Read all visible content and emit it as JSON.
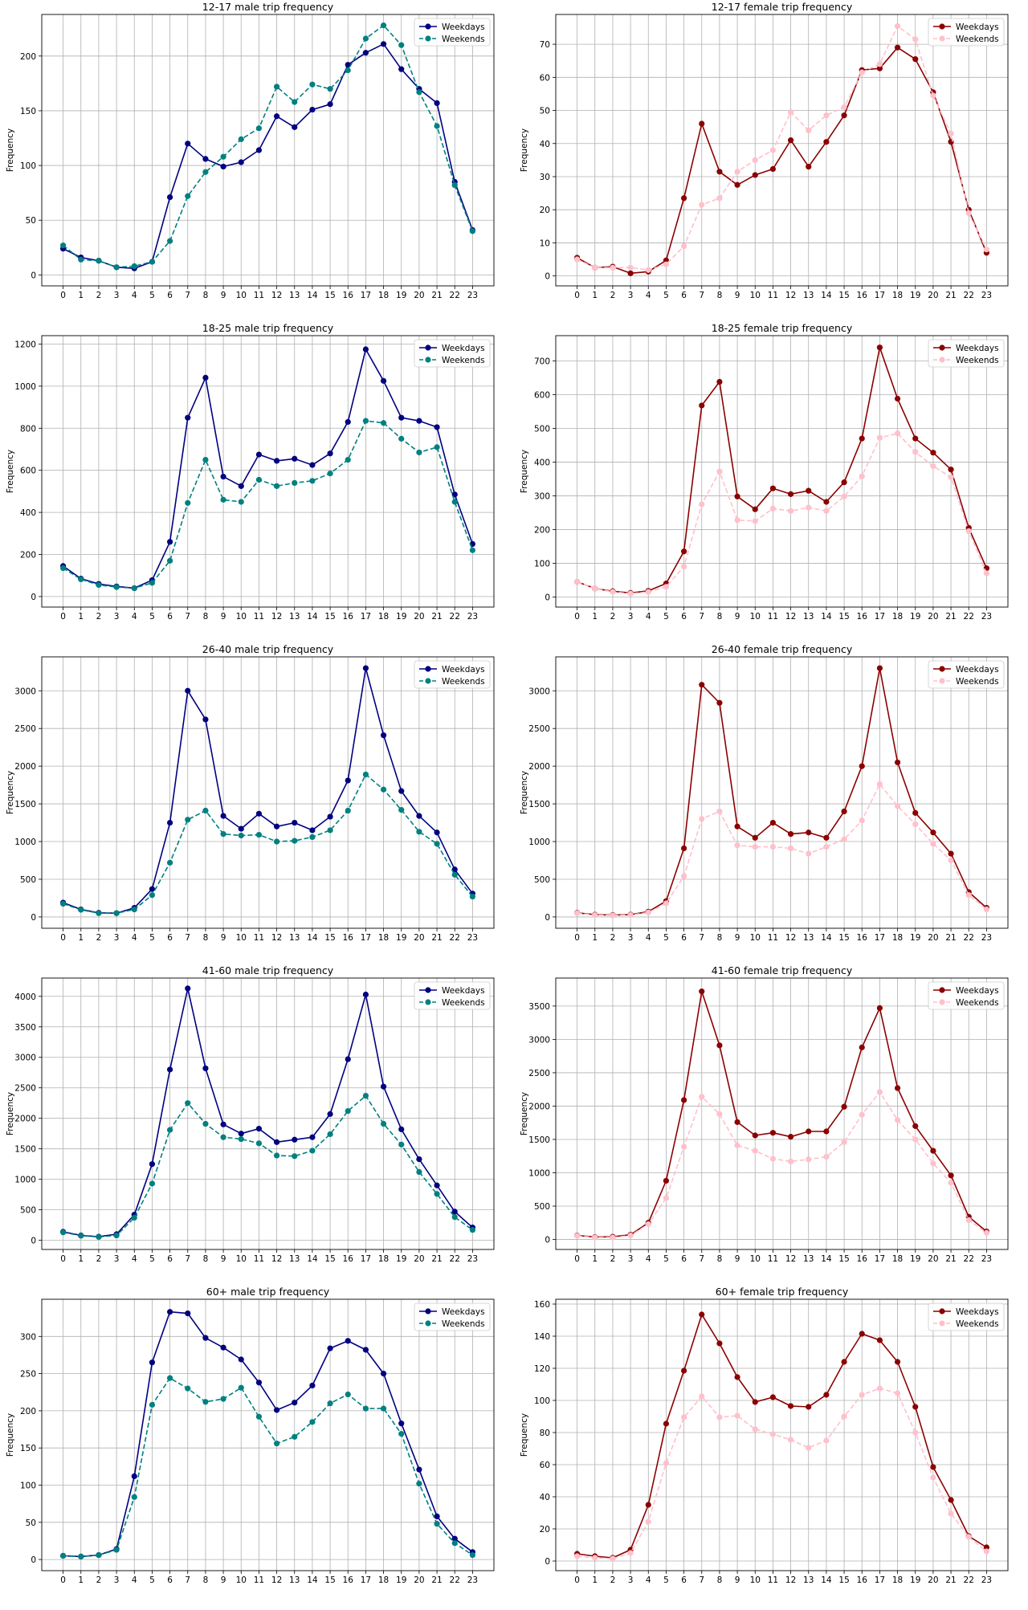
{
  "colors": {
    "male_weekdays": "#000080",
    "male_weekends": "#008080",
    "female_weekdays": "#8b0000",
    "female_weekends": "#ffc0cb",
    "grid": "#b0b0b0"
  },
  "chart_data": [
    {
      "type": "line",
      "title": "12-17 male trip frequency",
      "ylabel": "Frequency",
      "ylim": [
        -10,
        238
      ],
      "yticks": [
        0,
        50,
        100,
        150,
        200
      ],
      "categories": [
        "0",
        "1",
        "2",
        "3",
        "4",
        "5",
        "6",
        "7",
        "8",
        "9",
        "10",
        "11",
        "12",
        "13",
        "14",
        "15",
        "16",
        "17",
        "18",
        "19",
        "20",
        "21",
        "22",
        "23"
      ],
      "grid": true,
      "legend": "top-right",
      "series": [
        {
          "name": "Weekdays",
          "style": "solid",
          "color": "#000080",
          "values": [
            24,
            16,
            13,
            7,
            6,
            12,
            71,
            120,
            106,
            99,
            103,
            114,
            145,
            135,
            151,
            156,
            192,
            203,
            211,
            188,
            170,
            157,
            85,
            41
          ]
        },
        {
          "name": "Weekends",
          "style": "dashed",
          "color": "#008080",
          "values": [
            27,
            14,
            13,
            7,
            8,
            12,
            31,
            72,
            94,
            108,
            124,
            134,
            172,
            158,
            174,
            170,
            187,
            216,
            228,
            210,
            167,
            136,
            82,
            40
          ]
        }
      ]
    },
    {
      "type": "line",
      "title": "12-17 female trip frequency",
      "ylabel": "Frequency",
      "ylim": [
        -3,
        79
      ],
      "yticks": [
        0,
        10,
        20,
        30,
        40,
        50,
        60,
        70
      ],
      "categories": [
        "0",
        "1",
        "2",
        "3",
        "4",
        "5",
        "6",
        "7",
        "8",
        "9",
        "10",
        "11",
        "12",
        "13",
        "14",
        "15",
        "16",
        "17",
        "18",
        "19",
        "20",
        "21",
        "22",
        "23"
      ],
      "grid": true,
      "legend": "top-right",
      "series": [
        {
          "name": "Weekdays",
          "style": "solid",
          "color": "#8b0000",
          "values": [
            5.5,
            2.5,
            2.8,
            0.8,
            1.3,
            4.7,
            23.5,
            46,
            31.5,
            27.5,
            30.5,
            32.3,
            41,
            33,
            40.5,
            48.5,
            62.2,
            62.7,
            69,
            65.5,
            55.5,
            40.5,
            20,
            7
          ]
        },
        {
          "name": "Weekends",
          "style": "dashed",
          "color": "#ffc0cb",
          "values": [
            5,
            2.5,
            2.5,
            2.5,
            1.8,
            3.5,
            9,
            21.5,
            23.5,
            31.5,
            35,
            38,
            49.5,
            44,
            48.5,
            51,
            61.5,
            64,
            75.5,
            71.5,
            54.5,
            43,
            19,
            8
          ]
        }
      ]
    },
    {
      "type": "line",
      "title": "18-25 male trip frequency",
      "ylabel": "Frequency",
      "ylim": [
        -50,
        1240
      ],
      "yticks": [
        0,
        200,
        400,
        600,
        800,
        1000,
        1200
      ],
      "categories": [
        "0",
        "1",
        "2",
        "3",
        "4",
        "5",
        "6",
        "7",
        "8",
        "9",
        "10",
        "11",
        "12",
        "13",
        "14",
        "15",
        "16",
        "17",
        "18",
        "19",
        "20",
        "21",
        "22",
        "23"
      ],
      "grid": true,
      "legend": "top-right",
      "series": [
        {
          "name": "Weekdays",
          "style": "solid",
          "color": "#000080",
          "values": [
            145,
            85,
            60,
            48,
            40,
            78,
            260,
            850,
            1040,
            570,
            525,
            675,
            645,
            655,
            625,
            680,
            830,
            1175,
            1025,
            850,
            835,
            805,
            485,
            250
          ]
        },
        {
          "name": "Weekends",
          "style": "dashed",
          "color": "#008080",
          "values": [
            135,
            82,
            55,
            45,
            40,
            65,
            170,
            445,
            650,
            460,
            450,
            555,
            525,
            540,
            550,
            585,
            650,
            835,
            825,
            750,
            685,
            710,
            450,
            220
          ]
        }
      ]
    },
    {
      "type": "line",
      "title": "18-25 female trip frequency",
      "ylabel": "Frequency",
      "ylim": [
        -30,
        775
      ],
      "yticks": [
        0,
        100,
        200,
        300,
        400,
        500,
        600,
        700
      ],
      "categories": [
        "0",
        "1",
        "2",
        "3",
        "4",
        "5",
        "6",
        "7",
        "8",
        "9",
        "10",
        "11",
        "12",
        "13",
        "14",
        "15",
        "16",
        "17",
        "18",
        "19",
        "20",
        "21",
        "22",
        "23"
      ],
      "grid": true,
      "legend": "top-right",
      "series": [
        {
          "name": "Weekdays",
          "style": "solid",
          "color": "#8b0000",
          "values": [
            45,
            25,
            17,
            12,
            18,
            40,
            135,
            568,
            638,
            298,
            260,
            322,
            305,
            315,
            282,
            340,
            470,
            740,
            588,
            470,
            428,
            378,
            205,
            85
          ]
        },
        {
          "name": "Weekends",
          "style": "dashed",
          "color": "#ffc0cb",
          "values": [
            45,
            25,
            15,
            10,
            15,
            30,
            90,
            275,
            372,
            228,
            225,
            262,
            255,
            265,
            255,
            298,
            358,
            472,
            485,
            430,
            388,
            355,
            195,
            70
          ]
        }
      ]
    },
    {
      "type": "line",
      "title": "26-40 male trip frequency",
      "ylabel": "Frequency",
      "ylim": [
        -150,
        3450
      ],
      "yticks": [
        0,
        500,
        1000,
        1500,
        2000,
        2500,
        3000
      ],
      "categories": [
        "0",
        "1",
        "2",
        "3",
        "4",
        "5",
        "6",
        "7",
        "8",
        "9",
        "10",
        "11",
        "12",
        "13",
        "14",
        "15",
        "16",
        "17",
        "18",
        "19",
        "20",
        "21",
        "22",
        "23"
      ],
      "grid": true,
      "legend": "top-right",
      "series": [
        {
          "name": "Weekdays",
          "style": "solid",
          "color": "#000080",
          "values": [
            190,
            100,
            55,
            50,
            120,
            370,
            1250,
            3000,
            2620,
            1340,
            1170,
            1370,
            1200,
            1250,
            1150,
            1330,
            1810,
            3300,
            2410,
            1670,
            1340,
            1120,
            630,
            310
          ]
        },
        {
          "name": "Weekends",
          "style": "dashed",
          "color": "#008080",
          "values": [
            175,
            95,
            50,
            50,
            100,
            290,
            720,
            1290,
            1410,
            1100,
            1080,
            1090,
            1000,
            1010,
            1060,
            1150,
            1410,
            1890,
            1690,
            1420,
            1130,
            970,
            560,
            270
          ]
        }
      ]
    },
    {
      "type": "line",
      "title": "26-40 female trip frequency",
      "ylabel": "Frequency",
      "ylim": [
        -150,
        3450
      ],
      "yticks": [
        0,
        500,
        1000,
        1500,
        2000,
        2500,
        3000
      ],
      "categories": [
        "0",
        "1",
        "2",
        "3",
        "4",
        "5",
        "6",
        "7",
        "8",
        "9",
        "10",
        "11",
        "12",
        "13",
        "14",
        "15",
        "16",
        "17",
        "18",
        "19",
        "20",
        "21",
        "22",
        "23"
      ],
      "grid": true,
      "legend": "top-right",
      "series": [
        {
          "name": "Weekdays",
          "style": "solid",
          "color": "#8b0000",
          "values": [
            55,
            30,
            25,
            30,
            70,
            210,
            910,
            3080,
            2840,
            1200,
            1050,
            1250,
            1100,
            1120,
            1050,
            1400,
            2000,
            3300,
            2050,
            1380,
            1120,
            840,
            330,
            120
          ]
        },
        {
          "name": "Weekends",
          "style": "dashed",
          "color": "#ffc0cb",
          "values": [
            50,
            25,
            20,
            25,
            60,
            180,
            540,
            1300,
            1400,
            950,
            930,
            930,
            910,
            840,
            930,
            1030,
            1280,
            1760,
            1470,
            1230,
            970,
            750,
            290,
            100
          ]
        }
      ]
    },
    {
      "type": "line",
      "title": "41-60 male trip frequency",
      "ylabel": "Frequency",
      "ylim": [
        -150,
        4300
      ],
      "yticks": [
        0,
        500,
        1000,
        1500,
        2000,
        2500,
        3000,
        3500,
        4000
      ],
      "categories": [
        "0",
        "1",
        "2",
        "3",
        "4",
        "5",
        "6",
        "7",
        "8",
        "9",
        "10",
        "11",
        "12",
        "13",
        "14",
        "15",
        "16",
        "17",
        "18",
        "19",
        "20",
        "21",
        "22",
        "23"
      ],
      "grid": true,
      "legend": "top-right",
      "series": [
        {
          "name": "Weekdays",
          "style": "solid",
          "color": "#000080",
          "values": [
            140,
            80,
            60,
            100,
            420,
            1250,
            2800,
            4130,
            2820,
            1900,
            1750,
            1830,
            1610,
            1650,
            1690,
            2070,
            2970,
            4030,
            2520,
            1820,
            1330,
            900,
            470,
            210
          ]
        },
        {
          "name": "Weekends",
          "style": "dashed",
          "color": "#008080",
          "values": [
            130,
            75,
            55,
            80,
            370,
            930,
            1810,
            2250,
            1910,
            1690,
            1660,
            1590,
            1390,
            1380,
            1470,
            1740,
            2120,
            2370,
            1910,
            1570,
            1120,
            760,
            380,
            170
          ]
        }
      ]
    },
    {
      "type": "line",
      "title": "41-60 female trip frequency",
      "ylabel": "Frequency",
      "ylim": [
        -150,
        3920
      ],
      "yticks": [
        0,
        500,
        1000,
        1500,
        2000,
        2500,
        3000,
        3500
      ],
      "categories": [
        "0",
        "1",
        "2",
        "3",
        "4",
        "5",
        "6",
        "7",
        "8",
        "9",
        "10",
        "11",
        "12",
        "13",
        "14",
        "15",
        "16",
        "17",
        "18",
        "19",
        "20",
        "21",
        "22",
        "23"
      ],
      "grid": true,
      "legend": "top-right",
      "series": [
        {
          "name": "Weekdays",
          "style": "solid",
          "color": "#8b0000",
          "values": [
            60,
            35,
            40,
            70,
            250,
            880,
            2090,
            3720,
            2910,
            1760,
            1560,
            1600,
            1540,
            1620,
            1620,
            1990,
            2880,
            3470,
            2270,
            1700,
            1330,
            960,
            340,
            120
          ]
        },
        {
          "name": "Weekends",
          "style": "dashed",
          "color": "#ffc0cb",
          "values": [
            55,
            30,
            30,
            60,
            230,
            620,
            1390,
            2140,
            1880,
            1410,
            1330,
            1210,
            1170,
            1200,
            1240,
            1460,
            1870,
            2210,
            1790,
            1500,
            1140,
            850,
            290,
            100
          ]
        }
      ]
    },
    {
      "type": "line",
      "title": "60+ male trip frequency",
      "ylabel": "Frequency",
      "ylim": [
        -15,
        350
      ],
      "yticks": [
        0,
        50,
        100,
        150,
        200,
        250,
        300
      ],
      "categories": [
        "0",
        "1",
        "2",
        "3",
        "4",
        "5",
        "6",
        "7",
        "8",
        "9",
        "10",
        "11",
        "12",
        "13",
        "14",
        "15",
        "16",
        "17",
        "18",
        "19",
        "20",
        "21",
        "22",
        "23"
      ],
      "grid": true,
      "legend": "top-right",
      "series": [
        {
          "name": "Weekdays",
          "style": "solid",
          "color": "#000080",
          "values": [
            5,
            4,
            6,
            14,
            112,
            265,
            333,
            331,
            298,
            285,
            269,
            238,
            201,
            211,
            234,
            284,
            294,
            282,
            250,
            183,
            121,
            58,
            28,
            10
          ]
        },
        {
          "name": "Weekends",
          "style": "dashed",
          "color": "#008080",
          "values": [
            5,
            4,
            6,
            13,
            84,
            208,
            244,
            230,
            212,
            216,
            231,
            192,
            156,
            165,
            185,
            210,
            222,
            203,
            203,
            169,
            102,
            48,
            22,
            6
          ]
        }
      ]
    },
    {
      "type": "line",
      "title": "60+ female trip frequency",
      "ylabel": "Frequency",
      "ylim": [
        -6,
        163
      ],
      "yticks": [
        0,
        20,
        40,
        60,
        80,
        100,
        120,
        140,
        160
      ],
      "categories": [
        "0",
        "1",
        "2",
        "3",
        "4",
        "5",
        "6",
        "7",
        "8",
        "9",
        "10",
        "11",
        "12",
        "13",
        "14",
        "15",
        "16",
        "17",
        "18",
        "19",
        "20",
        "21",
        "22",
        "23"
      ],
      "grid": true,
      "legend": "top-right",
      "series": [
        {
          "name": "Weekdays",
          "style": "solid",
          "color": "#8b0000",
          "values": [
            4.5,
            3,
            2,
            7,
            35,
            85.5,
            118.5,
            153.5,
            135.5,
            114.5,
            99,
            102,
            96.5,
            96,
            103.5,
            124,
            141.5,
            137.5,
            124,
            96,
            58.5,
            38,
            15.5,
            8.5
          ]
        },
        {
          "name": "Weekends",
          "style": "dashed",
          "color": "#ffc0cb",
          "values": [
            3,
            2,
            1.5,
            5,
            24.5,
            61,
            89.5,
            102.5,
            89.5,
            90.5,
            82,
            79,
            75.5,
            70.5,
            75,
            90,
            103.5,
            107.5,
            104.5,
            80,
            52,
            29.5,
            15,
            6
          ]
        }
      ]
    }
  ]
}
